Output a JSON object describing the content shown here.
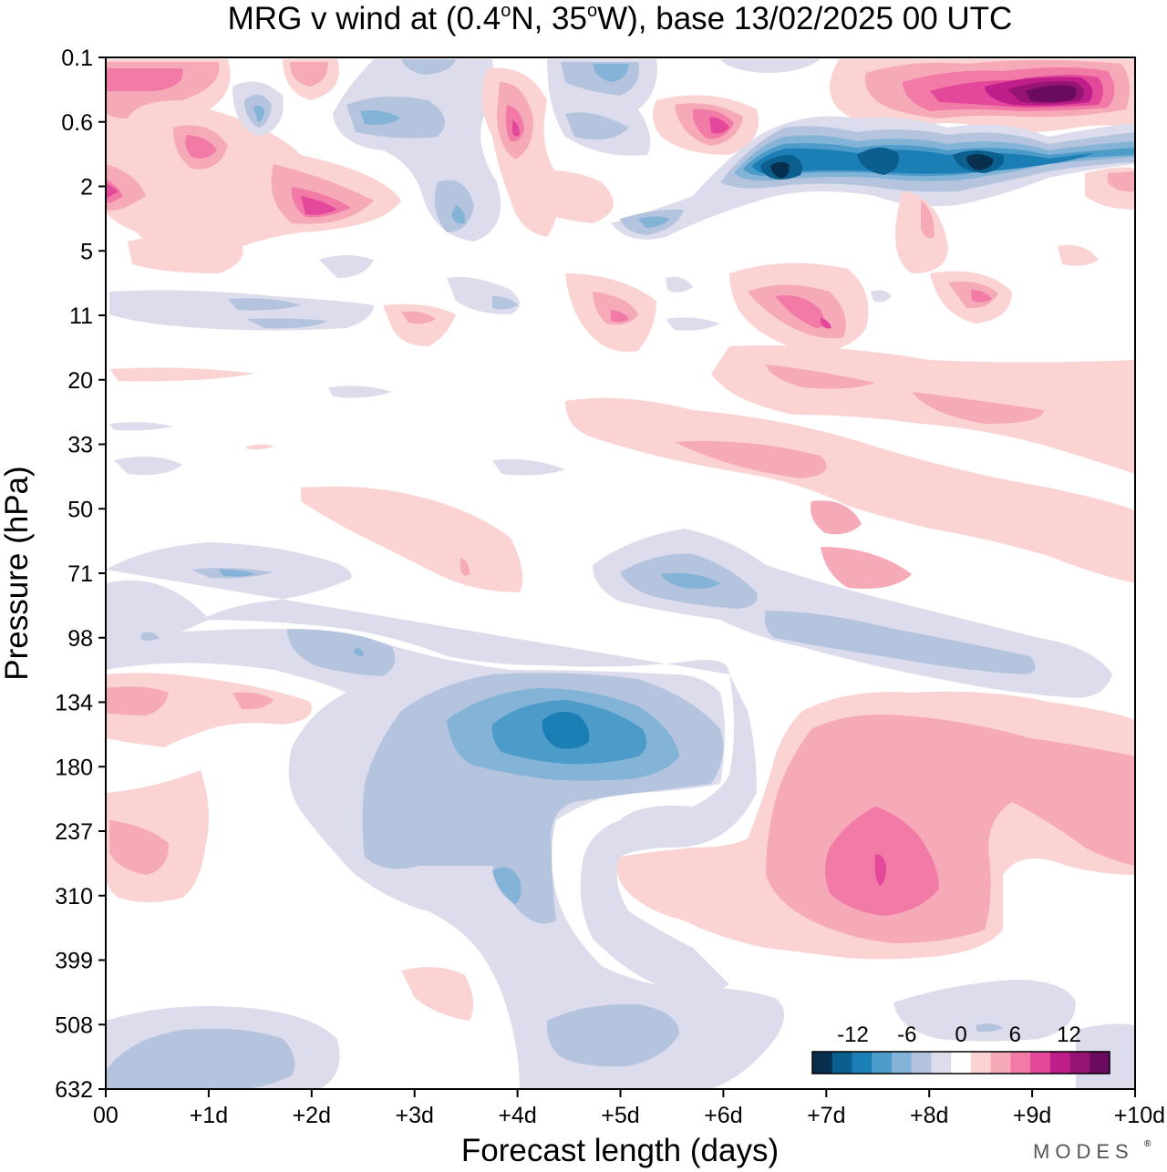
{
  "chart_data": {
    "type": "heatmap",
    "title": "MRG v wind at (0.4°N, 35°W),  base 13/02/2025  00 UTC",
    "title_parts": {
      "p1": "MRG v wind at (0.4",
      "deg": "o",
      "p2": "N, 35",
      "p3": "W),  base 13/02/2025  00 UTC"
    },
    "xlabel": "Forecast length (days)",
    "ylabel": "Pressure (hPa)",
    "x_tick_labels": [
      "00",
      "+1d",
      "+2d",
      "+3d",
      "+4d",
      "+5d",
      "+6d",
      "+7d",
      "+8d",
      "+9d",
      "+10d"
    ],
    "x_range_days": [
      0,
      10
    ],
    "y_tick_labels": [
      "0.1",
      "0.6",
      "2",
      "5",
      "11",
      "20",
      "33",
      "50",
      "71",
      "98",
      "134",
      "180",
      "237",
      "310",
      "399",
      "508",
      "632"
    ],
    "y_scale": "log-pressure, top 0.1 hPa to bottom 632 hPa",
    "colorbar": {
      "placement": "bottom-right inside plot",
      "tick_labels": [
        "-12",
        "-6",
        "0",
        "6",
        "12"
      ],
      "tick_values": [
        -12,
        -6,
        0,
        6,
        12
      ],
      "levels": [
        -16,
        -14,
        -12,
        -10,
        -8,
        -6,
        -4,
        -2,
        2,
        4,
        6,
        8,
        10,
        12,
        14,
        16
      ],
      "colors": [
        "#08304e",
        "#0a5f8e",
        "#1b7fb6",
        "#4c9bc9",
        "#83b3d6",
        "#b5c4de",
        "#dcdcec",
        "#ffffff",
        "#fbd3d3",
        "#f6aab8",
        "#f27aa6",
        "#e3489a",
        "#bf1e8a",
        "#951474",
        "#6a0b60"
      ]
    },
    "features": [
      {
        "label": "strong negative jet core",
        "x_days": 6.5,
        "pressure_hPa": 1.4,
        "value": -16
      },
      {
        "label": "strong positive core",
        "x_days": 9.2,
        "pressure_hPa": 0.3,
        "value": 16
      },
      {
        "label": "negative core",
        "x_days": 4.5,
        "pressure_hPa": 150,
        "value": -12
      },
      {
        "label": "positive core",
        "x_days": 7.5,
        "pressure_hPa": 290,
        "value": 10
      },
      {
        "label": "positive core",
        "x_days": 5.9,
        "pressure_hPa": 0.6,
        "value": 12
      },
      {
        "label": "positive core",
        "x_days": 4.0,
        "pressure_hPa": 0.7,
        "value": 10
      }
    ]
  },
  "branding": {
    "logo_text": "MODES",
    "mark": "®"
  }
}
